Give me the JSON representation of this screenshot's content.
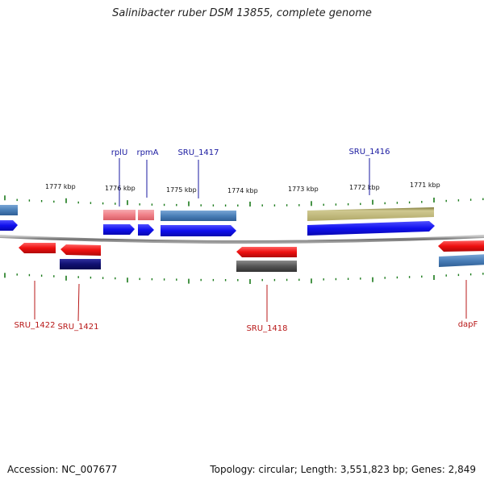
{
  "title": "Salinibacter ruber DSM 13855, complete genome",
  "footer": {
    "accession": "Accession: NC_007677",
    "topology": "Topology: circular; Length: 3,551,823 bp; Genes: 2,849"
  },
  "ruler": {
    "labels": [
      "1777 kbp",
      "1776 kbp",
      "1775 kbp",
      "1774 kbp",
      "1773 kbp",
      "1772 kbp",
      "1771 kbp"
    ]
  },
  "gene_labels": {
    "top": [
      "rplU",
      "rpmA",
      "SRU_1417",
      "SRU_1416"
    ],
    "bottom": [
      "SRU_1422",
      "SRU_1421",
      "SRU_1418",
      "dapF"
    ]
  },
  "colors": {
    "forward_cds": "#1010ee",
    "reverse_cds": "#ee1010",
    "feature_blue": "#4a7fb8",
    "feature_pink": "#f08088",
    "feature_olive": "#b8b070",
    "feature_navy": "#101070",
    "feature_gray": "#555555",
    "backbone": "#888888",
    "tick": "#1a7a1a",
    "label_top": "#1a1aa0",
    "label_bottom": "#b81818"
  }
}
